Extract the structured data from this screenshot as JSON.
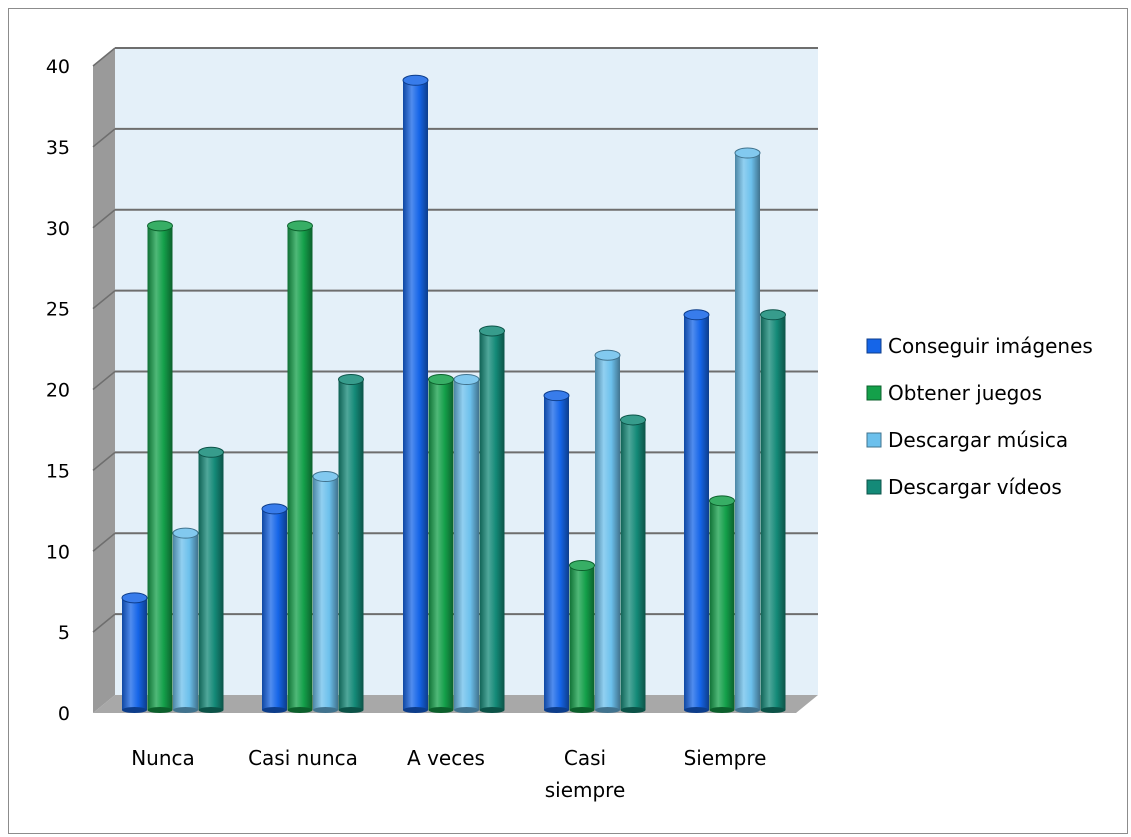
{
  "chart_data": {
    "type": "bar",
    "title": "",
    "xlabel": "",
    "ylabel": "",
    "ylim": [
      0,
      40
    ],
    "yticks": [
      "0",
      "5",
      "10",
      "15",
      "20",
      "25",
      "30",
      "35",
      "40"
    ],
    "grid": true,
    "legend_position": "right",
    "categories": [
      "Nunca",
      "Casi nunca",
      "A veces",
      "Casi siempre",
      "Siempre"
    ],
    "category_lines": [
      [
        "Nunca"
      ],
      [
        "Casi nunca"
      ],
      [
        "A veces"
      ],
      [
        "Casi",
        "siempre"
      ],
      [
        "Siempre"
      ]
    ],
    "series": [
      {
        "name": "Conseguir imágenes",
        "color": "#1565e8",
        "values": [
          6.5,
          12,
          38.5,
          19,
          24
        ]
      },
      {
        "name": "Obtener juegos",
        "color": "#14a04a",
        "values": [
          29.5,
          29.5,
          20,
          8.5,
          12.5
        ]
      },
      {
        "name": "Descargar música",
        "color": "#6cc0ec",
        "values": [
          10.5,
          14,
          20,
          21.5,
          34
        ]
      },
      {
        "name": "Descargar vídeos",
        "color": "#148a78",
        "values": [
          15.5,
          20,
          23,
          17.5,
          24
        ]
      }
    ]
  }
}
